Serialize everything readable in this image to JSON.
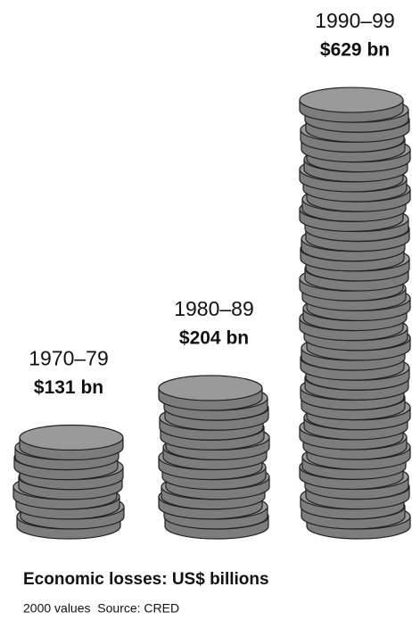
{
  "chart_data": {
    "type": "bar",
    "title": "Economic losses: US$ billions",
    "subtitle": "2000 values  Source: CRED",
    "categories": [
      "1970–79",
      "1980–89",
      "1990–99"
    ],
    "values": [
      131,
      204,
      629
    ],
    "value_labels": [
      "$131 bn",
      "$204 bn",
      "$629 bn"
    ],
    "color": "#9a9a9a"
  }
}
